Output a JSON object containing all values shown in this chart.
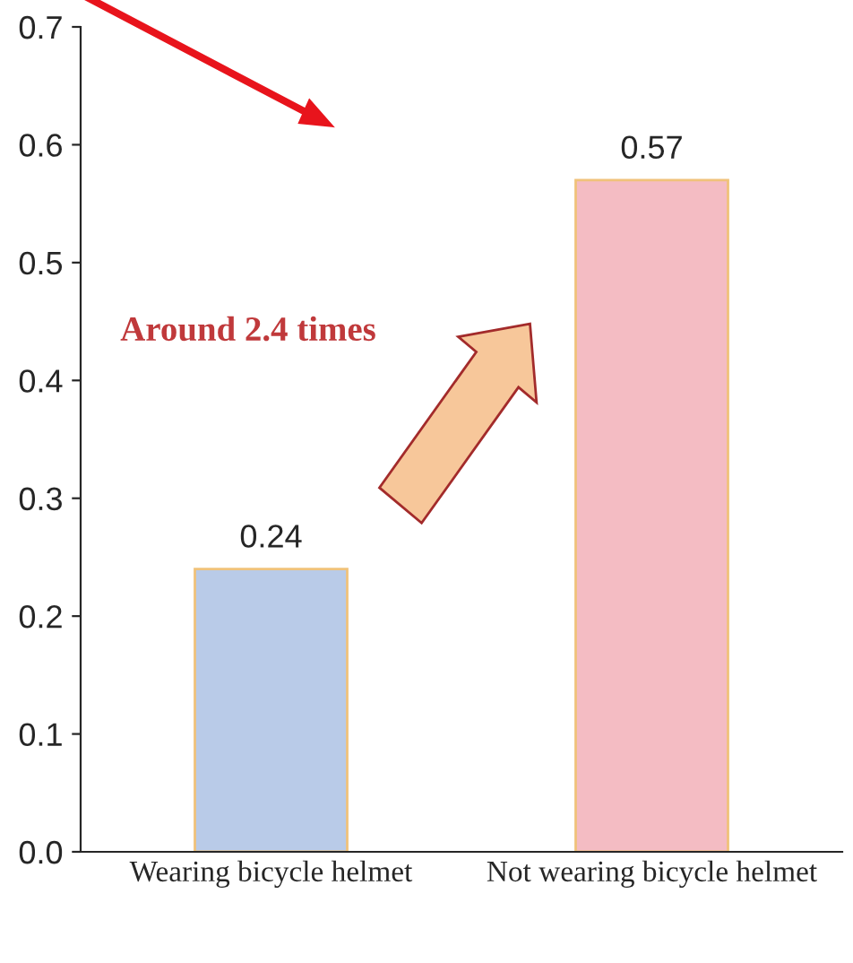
{
  "chart_data": {
    "type": "bar",
    "categories": [
      "Wearing bicycle helmet",
      "Not wearing bicycle helmet"
    ],
    "values": [
      0.24,
      0.57
    ],
    "colors": [
      "#b9cbe8",
      "#f4bcc3"
    ],
    "ylim": [
      0,
      0.7
    ],
    "yticks": [
      {
        "value": 0,
        "label": "0.0"
      },
      0.1,
      0.2,
      0.3,
      0.4,
      0.5,
      0.6,
      0.7
    ],
    "data_labels": true,
    "grid": false,
    "annotations": [
      {
        "text": "Around 2.4 times"
      }
    ]
  }
}
